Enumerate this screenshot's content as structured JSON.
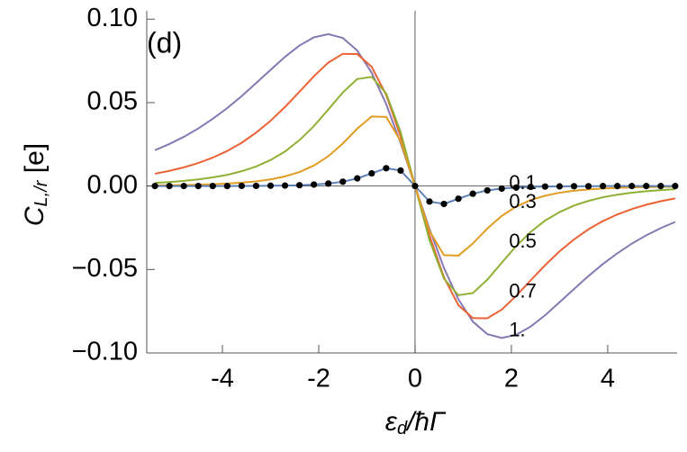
{
  "chart_data": {
    "type": "line",
    "panel_label": "(d)",
    "xlabel": {
      "main": "ε",
      "sub": "d",
      "rest": "/ħΓ"
    },
    "ylabel": {
      "main": "C",
      "sub": "L,/r",
      "rest": " [e]"
    },
    "x": [
      -5.4,
      -5.1,
      -4.8,
      -4.5,
      -4.2,
      -3.9,
      -3.6,
      -3.3,
      -3.0,
      -2.7,
      -2.4,
      -2.1,
      -1.8,
      -1.5,
      -1.2,
      -0.9,
      -0.6,
      -0.3,
      0,
      0.3,
      0.6,
      0.9,
      1.2,
      1.5,
      1.8,
      2.1,
      2.4,
      2.7,
      3.0,
      3.3,
      3.6,
      3.9,
      4.2,
      4.5,
      4.8,
      5.1,
      5.4
    ],
    "xlim": [
      -5.57,
      5.44
    ],
    "ylim": [
      -0.1,
      0.105
    ],
    "xticks": [
      -4,
      -2,
      0,
      2,
      4
    ],
    "yticks": [
      {
        "value": 0.1,
        "label": "0.10"
      },
      {
        "value": 0.05,
        "label": "0.05"
      },
      {
        "value": 0,
        "label": "0.00"
      },
      {
        "value": -0.05,
        "label": "−0.05"
      },
      {
        "value": -0.1,
        "label": "−0.10"
      }
    ],
    "series": [
      {
        "name": "1.",
        "color": "#8778b3",
        "values": [
          0.0215,
          0.0252,
          0.0295,
          0.0345,
          0.0403,
          0.0467,
          0.0539,
          0.0617,
          0.0696,
          0.0774,
          0.0842,
          0.0891,
          0.091,
          0.0887,
          0.0812,
          0.0679,
          0.0491,
          0.0258,
          0,
          -0.0258,
          -0.0491,
          -0.0679,
          -0.0812,
          -0.0887,
          -0.091,
          -0.0891,
          -0.0842,
          -0.0774,
          -0.0696,
          -0.0617,
          -0.0539,
          -0.0467,
          -0.0403,
          -0.0345,
          -0.0295,
          -0.0252,
          -0.0215
        ]
      },
      {
        "name": "0.7",
        "color": "#eb6235",
        "values": [
          0.0074,
          0.0091,
          0.0112,
          0.0138,
          0.017,
          0.021,
          0.0259,
          0.032,
          0.0391,
          0.0474,
          0.0565,
          0.0658,
          0.074,
          0.0792,
          0.0791,
          0.0714,
          0.0547,
          0.0298,
          0,
          -0.0298,
          -0.0547,
          -0.0714,
          -0.0791,
          -0.0792,
          -0.074,
          -0.0658,
          -0.0565,
          -0.0474,
          -0.0391,
          -0.032,
          -0.0259,
          -0.021,
          -0.017,
          -0.0138,
          -0.0112,
          -0.0091,
          -0.0074
        ]
      },
      {
        "name": "0.5",
        "color": "#8fb032",
        "values": [
          0.0019,
          0.0024,
          0.0031,
          0.004,
          0.0052,
          0.0067,
          0.0089,
          0.0117,
          0.0156,
          0.0207,
          0.0275,
          0.0359,
          0.0459,
          0.0561,
          0.0641,
          0.0654,
          0.0555,
          0.0324,
          0,
          -0.0324,
          -0.0555,
          -0.0654,
          -0.0641,
          -0.0561,
          -0.0459,
          -0.0359,
          -0.0275,
          -0.0207,
          -0.0156,
          -0.0117,
          -0.0089,
          -0.0067,
          -0.0052,
          -0.004,
          -0.0031,
          -0.0024,
          -0.0019
        ]
      },
      {
        "name": "0.3",
        "color": "#e19c24",
        "values": [
          0.0004,
          0.0005,
          0.0006,
          0.0008,
          0.0011,
          0.0015,
          0.002,
          0.0028,
          0.004,
          0.0058,
          0.0084,
          0.0123,
          0.0179,
          0.0255,
          0.0344,
          0.0417,
          0.0414,
          0.027,
          0,
          -0.027,
          -0.0414,
          -0.0417,
          -0.0344,
          -0.0255,
          -0.0179,
          -0.0123,
          -0.0084,
          -0.0058,
          -0.004,
          -0.0028,
          -0.002,
          -0.0015,
          -0.0011,
          -0.0008,
          -0.0006,
          -0.0005,
          -0.0004
        ]
      },
      {
        "name": "0.1",
        "color": "#5e81b5",
        "marker": true,
        "values": [
          0,
          0,
          0,
          0,
          0,
          0,
          0.0001,
          0.0001,
          0.0002,
          0.0003,
          0.0005,
          0.0009,
          0.0015,
          0.0026,
          0.0046,
          0.0076,
          0.0107,
          0.0093,
          0,
          -0.0093,
          -0.0107,
          -0.0076,
          -0.0046,
          -0.0026,
          -0.0015,
          -0.0009,
          -0.0005,
          -0.0003,
          -0.0002,
          -0.0001,
          -0.0001,
          0,
          0,
          0,
          0,
          0,
          0
        ]
      }
    ]
  }
}
